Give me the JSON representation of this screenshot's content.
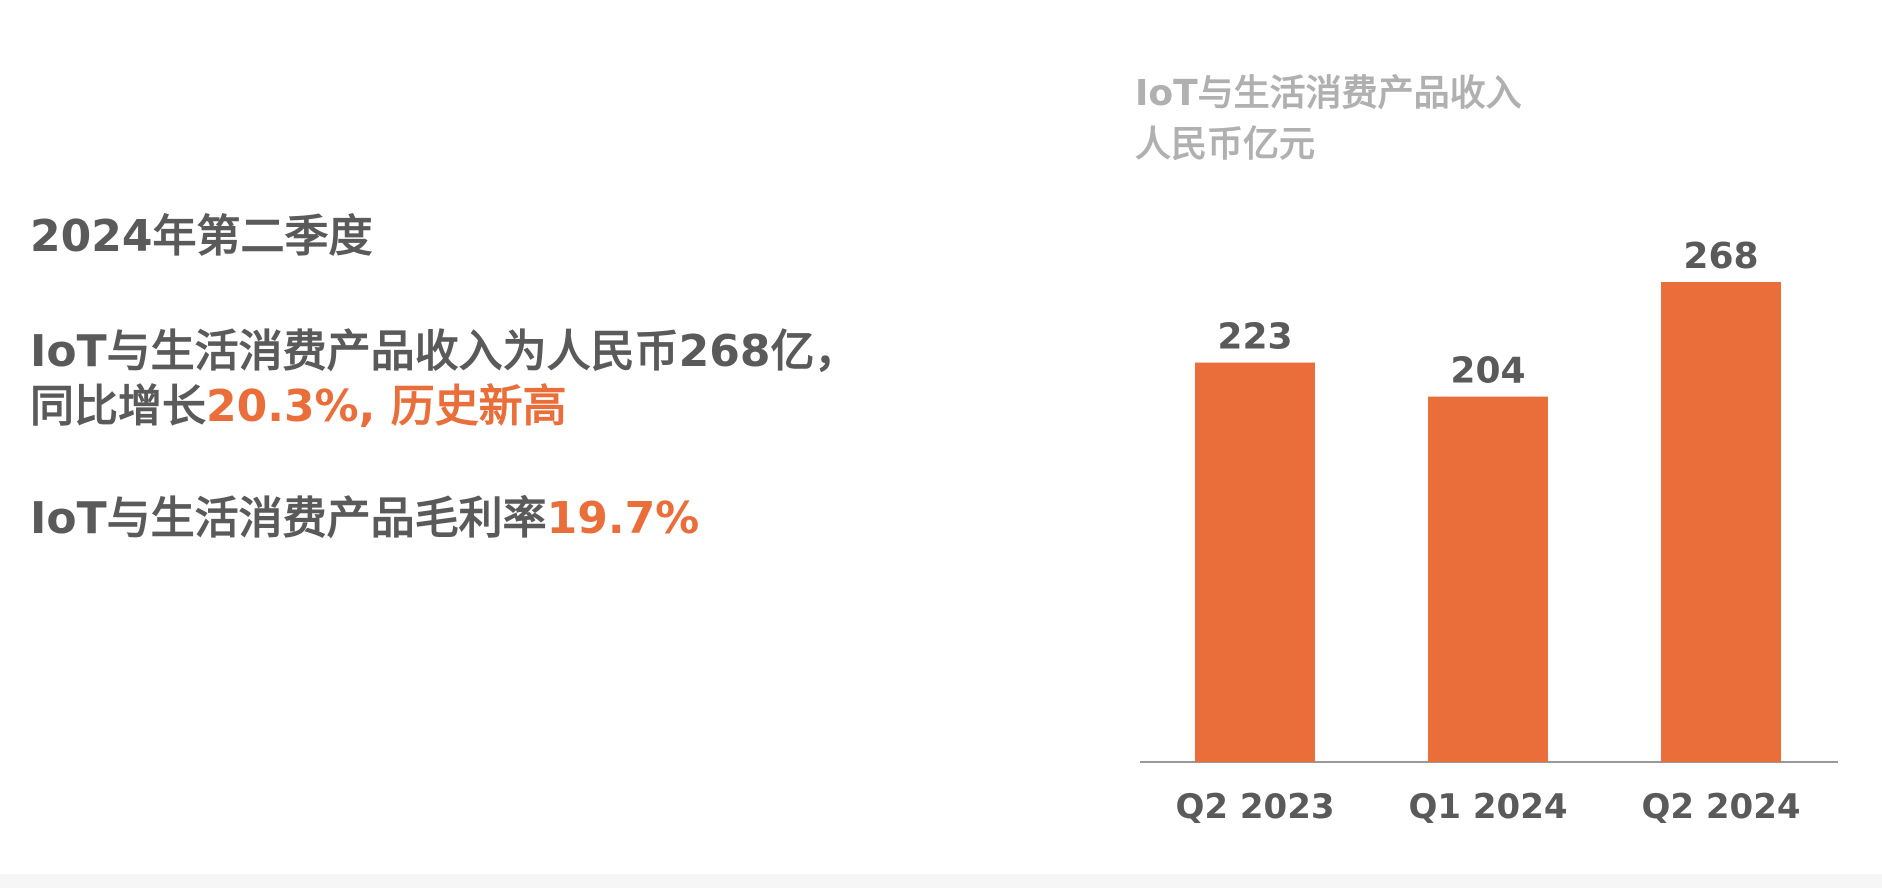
{
  "summary": {
    "period": "2024年第二季度",
    "revenue_line1": "IoT与生活消费产品收入为人民币268亿，",
    "revenue_line2_prefix": "同比增长",
    "revenue_line2_highlight": "20.3%, 历史新高",
    "margin_prefix": "IoT与生活消费产品毛利率",
    "margin_highlight": "19.7%"
  },
  "colors": {
    "text": "#5a5a5a",
    "accent": "#ea6e3a",
    "bar": "#ea6e3a",
    "muted": "#b0b0b0",
    "axis": "#999999"
  },
  "chart_data": {
    "type": "bar",
    "title": "IoT与生活消费产品收入",
    "unit": "人民币亿元",
    "categories": [
      "Q2 2023",
      "Q1 2024",
      "Q2 2024"
    ],
    "values": [
      223,
      204,
      268
    ],
    "data_labels": [
      "223",
      "204",
      "268"
    ],
    "ylim": [
      0,
      268
    ],
    "grid": false,
    "legend": "none"
  }
}
